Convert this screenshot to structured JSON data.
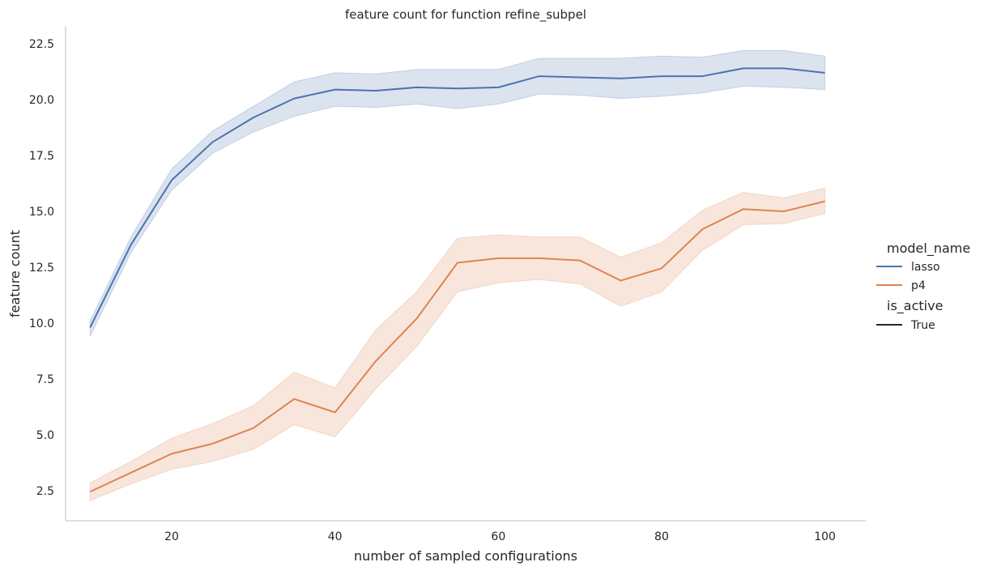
{
  "chart_data": {
    "type": "line",
    "title": "feature count for function refine_subpel",
    "xlabel": "number of sampled configurations",
    "ylabel": "feature count",
    "xlim": [
      7,
      105
    ],
    "ylim": [
      1.15,
      23.3
    ],
    "xticks": [
      20,
      40,
      60,
      80,
      100
    ],
    "yticks": [
      2.5,
      5.0,
      7.5,
      10.0,
      12.5,
      15.0,
      17.5,
      20.0,
      22.5
    ],
    "grid": false,
    "x": [
      10,
      15,
      20,
      25,
      30,
      35,
      40,
      45,
      50,
      55,
      60,
      65,
      70,
      75,
      80,
      85,
      90,
      95,
      100
    ],
    "series": [
      {
        "name": "lasso",
        "color": "#4c72b0",
        "values": [
          9.8,
          13.5,
          16.4,
          18.1,
          19.2,
          20.05,
          20.45,
          20.4,
          20.55,
          20.5,
          20.55,
          21.05,
          21.0,
          20.95,
          21.05,
          21.05,
          21.4,
          21.4,
          21.2
        ],
        "ci_low": [
          9.4,
          13.15,
          15.95,
          17.6,
          18.55,
          19.25,
          19.7,
          19.65,
          19.8,
          19.6,
          19.8,
          20.25,
          20.2,
          20.05,
          20.15,
          20.3,
          20.6,
          20.55,
          20.45
        ],
        "ci_high": [
          10.1,
          13.85,
          16.9,
          18.6,
          19.7,
          20.8,
          21.2,
          21.15,
          21.35,
          21.35,
          21.35,
          21.85,
          21.85,
          21.85,
          21.95,
          21.9,
          22.2,
          22.2,
          21.95
        ]
      },
      {
        "name": "p4",
        "color": "#dd8452",
        "values": [
          2.45,
          3.3,
          4.15,
          4.6,
          5.3,
          6.6,
          6.0,
          8.3,
          10.2,
          12.7,
          12.9,
          12.9,
          12.8,
          11.9,
          12.45,
          14.2,
          15.1,
          15.0,
          15.45
        ],
        "ci_low": [
          2.05,
          2.8,
          3.45,
          3.8,
          4.35,
          5.45,
          4.9,
          7.05,
          8.95,
          11.4,
          11.8,
          11.95,
          11.75,
          10.75,
          11.4,
          13.25,
          14.4,
          14.45,
          14.9
        ],
        "ci_high": [
          2.85,
          3.8,
          4.85,
          5.5,
          6.3,
          7.8,
          7.1,
          9.7,
          11.4,
          13.8,
          13.95,
          13.85,
          13.85,
          12.95,
          13.6,
          15.05,
          15.85,
          15.6,
          16.05
        ]
      }
    ],
    "legend": {
      "placement": "right",
      "hue_title": "model_name",
      "style_title": "is_active",
      "style_entries": [
        {
          "label": "True",
          "color": "#262626"
        }
      ]
    }
  }
}
